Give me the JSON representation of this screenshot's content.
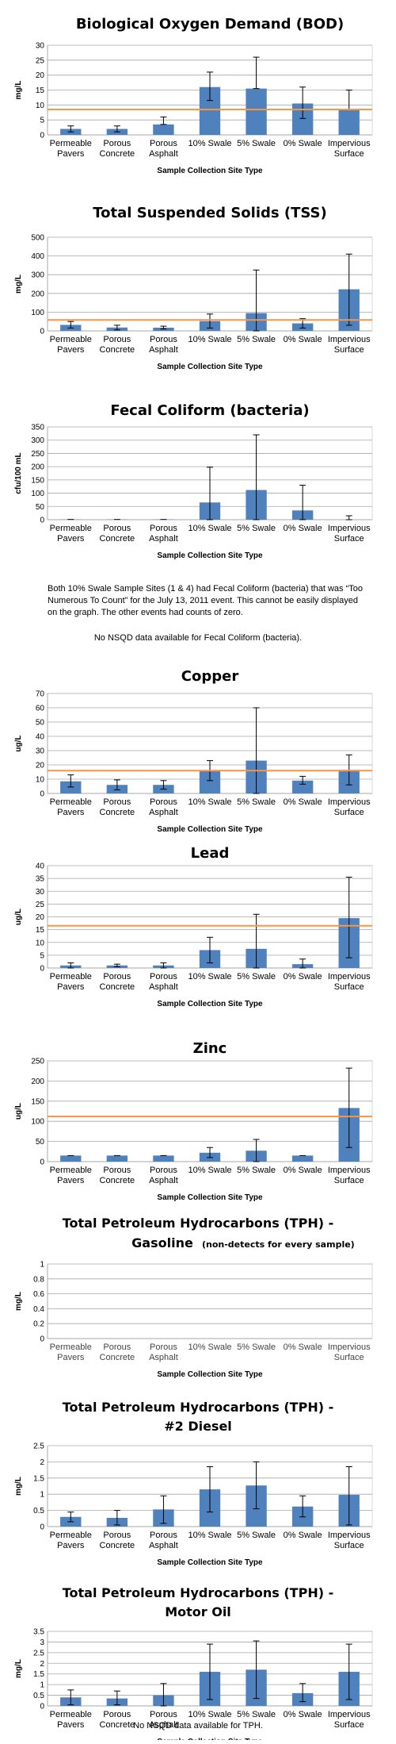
{
  "categories": [
    "Permeable|Pavers",
    "Porous|Concrete",
    "Porous|Asphalt",
    "10% Swale",
    "5% Swale",
    "0% Swale",
    "Impervious|Surface"
  ],
  "colors": {
    "bar": "#4f81bd",
    "nsqd_line": "#f79646",
    "grid": "#a6a6a6"
  },
  "chart_data": [
    {
      "type": "bar",
      "title": "Biological Oxygen Demand (BOD)",
      "subtitle": "",
      "ylabel": "mg/L",
      "xlabel": "Sample Collection Site Type",
      "ylim": [
        0,
        30
      ],
      "yticks": [
        0,
        5,
        10,
        15,
        20,
        25,
        30
      ],
      "values": [
        2,
        2,
        3.5,
        16,
        15.5,
        10.5,
        8.5
      ],
      "err_low": [
        1,
        1,
        3.5,
        11.5,
        15.5,
        5.5,
        8.5
      ],
      "err_high": [
        3,
        3,
        6,
        21,
        26,
        16,
        15
      ],
      "nsqd": 8.5
    },
    {
      "type": "bar",
      "title": "Total Suspended Solids (TSS)",
      "subtitle": "",
      "ylabel": "mg/L",
      "xlabel": "Sample Collection Site Type",
      "ylim": [
        0,
        500
      ],
      "yticks": [
        0,
        100,
        200,
        300,
        400,
        500
      ],
      "values": [
        32,
        18,
        17,
        52,
        95,
        40,
        222
      ],
      "err_low": [
        15,
        5,
        10,
        15,
        0,
        15,
        30
      ],
      "err_high": [
        50,
        30,
        25,
        90,
        325,
        65,
        410
      ],
      "nsqd": 58
    },
    {
      "type": "bar",
      "title": "Fecal Coliform (bacteria)",
      "subtitle": "",
      "ylabel": "cfu/100 mL",
      "xlabel": "Sample Collection Site Type",
      "ylim": [
        0,
        350
      ],
      "yticks": [
        0,
        50,
        100,
        150,
        200,
        250,
        300,
        350
      ],
      "values": [
        1,
        1,
        1,
        65,
        112,
        35,
        0
      ],
      "err_low": [
        1,
        1,
        1,
        0,
        0,
        0,
        0
      ],
      "err_high": [
        1,
        1,
        1,
        198,
        320,
        130,
        15
      ],
      "nsqd": null
    },
    {
      "type": "bar",
      "title": "Copper",
      "subtitle": "",
      "ylabel": "ug/L",
      "xlabel": "Sample Collection Site Type",
      "ylim": [
        0,
        70
      ],
      "yticks": [
        0,
        10,
        20,
        30,
        40,
        50,
        60,
        70
      ],
      "values": [
        8.5,
        6,
        6,
        16,
        23,
        9,
        16.5
      ],
      "err_low": [
        4.5,
        2.5,
        3,
        9,
        0,
        6.5,
        6
      ],
      "err_high": [
        13,
        9.5,
        9,
        23,
        60,
        12,
        27
      ],
      "nsqd": 16
    },
    {
      "type": "bar",
      "title": "Lead",
      "subtitle": "",
      "ylabel": "ug/L",
      "xlabel": "Sample Collection Site Type",
      "ylim": [
        0,
        40
      ],
      "yticks": [
        0,
        5,
        10,
        15,
        20,
        25,
        30,
        35,
        40
      ],
      "values": [
        1,
        1,
        1,
        7,
        7.5,
        1.5,
        19.5
      ],
      "err_low": [
        0,
        0.5,
        0,
        2,
        0,
        0,
        4
      ],
      "err_high": [
        2,
        1.5,
        2,
        12,
        21,
        3.5,
        35.5
      ],
      "nsqd": 16.5
    },
    {
      "type": "bar",
      "title": "Zinc",
      "subtitle": "",
      "ylabel": "ug/L",
      "xlabel": "Sample Collection Site Type",
      "ylim": [
        0,
        250
      ],
      "yticks": [
        0,
        50,
        100,
        150,
        200,
        250
      ],
      "values": [
        15,
        15,
        15,
        22,
        27,
        15,
        133
      ],
      "err_low": [
        15,
        15,
        15,
        10,
        0,
        15,
        35
      ],
      "err_high": [
        15,
        15,
        15,
        35,
        55,
        15,
        232
      ],
      "nsqd": 112
    },
    {
      "type": "bar",
      "title": "Total Petroleum Hydrocarbons (TPH) -",
      "title2": "Gasoline",
      "subtitle": "(non-detects for every sample)",
      "ylabel": "mg/L",
      "xlabel": "Sample Collection Site Type",
      "ylim": [
        0,
        1
      ],
      "yticks": [
        0,
        0.2,
        0.4,
        0.6,
        0.8,
        1
      ],
      "values": [
        0,
        0,
        0,
        0,
        0,
        0,
        0
      ],
      "err_low": [
        0,
        0,
        0,
        0,
        0,
        0,
        0
      ],
      "err_high": [
        0,
        0,
        0,
        0,
        0,
        0,
        0
      ],
      "nsqd": null,
      "faded_labels": true
    },
    {
      "type": "bar",
      "title": "Total Petroleum Hydrocarbons (TPH) -",
      "title2": "#2 Diesel",
      "subtitle": "",
      "ylabel": "mg/L",
      "xlabel": "Sample Collection Site Type",
      "ylim": [
        0,
        2.5
      ],
      "yticks": [
        0,
        0.5,
        1,
        1.5,
        2,
        2.5
      ],
      "values": [
        0.3,
        0.27,
        0.53,
        1.15,
        1.27,
        0.62,
        0.98
      ],
      "err_low": [
        0.15,
        0.05,
        0.1,
        0.45,
        0.55,
        0.3,
        0.05
      ],
      "err_high": [
        0.45,
        0.5,
        0.95,
        1.85,
        2.0,
        0.95,
        1.85
      ],
      "nsqd": null
    },
    {
      "type": "bar",
      "title": "Total Petroleum Hydrocarbons (TPH) -",
      "title2": "Motor Oil",
      "subtitle": "",
      "ylabel": "mg/L",
      "xlabel": "Sample Collection Site Type",
      "ylim": [
        0,
        3.5
      ],
      "yticks": [
        0,
        0.5,
        1,
        1.5,
        2,
        2.5,
        3,
        3.5
      ],
      "values": [
        0.4,
        0.35,
        0.5,
        1.6,
        1.7,
        0.6,
        1.6
      ],
      "err_low": [
        0.05,
        0.05,
        0.0,
        0.3,
        0.35,
        0.2,
        0.3
      ],
      "err_high": [
        0.75,
        0.7,
        1.05,
        2.9,
        3.05,
        1.05,
        2.9
      ],
      "nsqd": null
    }
  ],
  "notes": {
    "fecal_note": "Both 10% Swale Sample Sites (1 & 4) had Fecal Coliform (bacteria) that was “Too Numerous To Count” for the July 13, 2011 event. This cannot be easily displayed on the graph. The other events had counts of zero.",
    "fecal_nsqd": "No NSQD data available for Fecal Coliform (bacteria).",
    "tph_nsqd": "No NSQD data available for TPH."
  }
}
